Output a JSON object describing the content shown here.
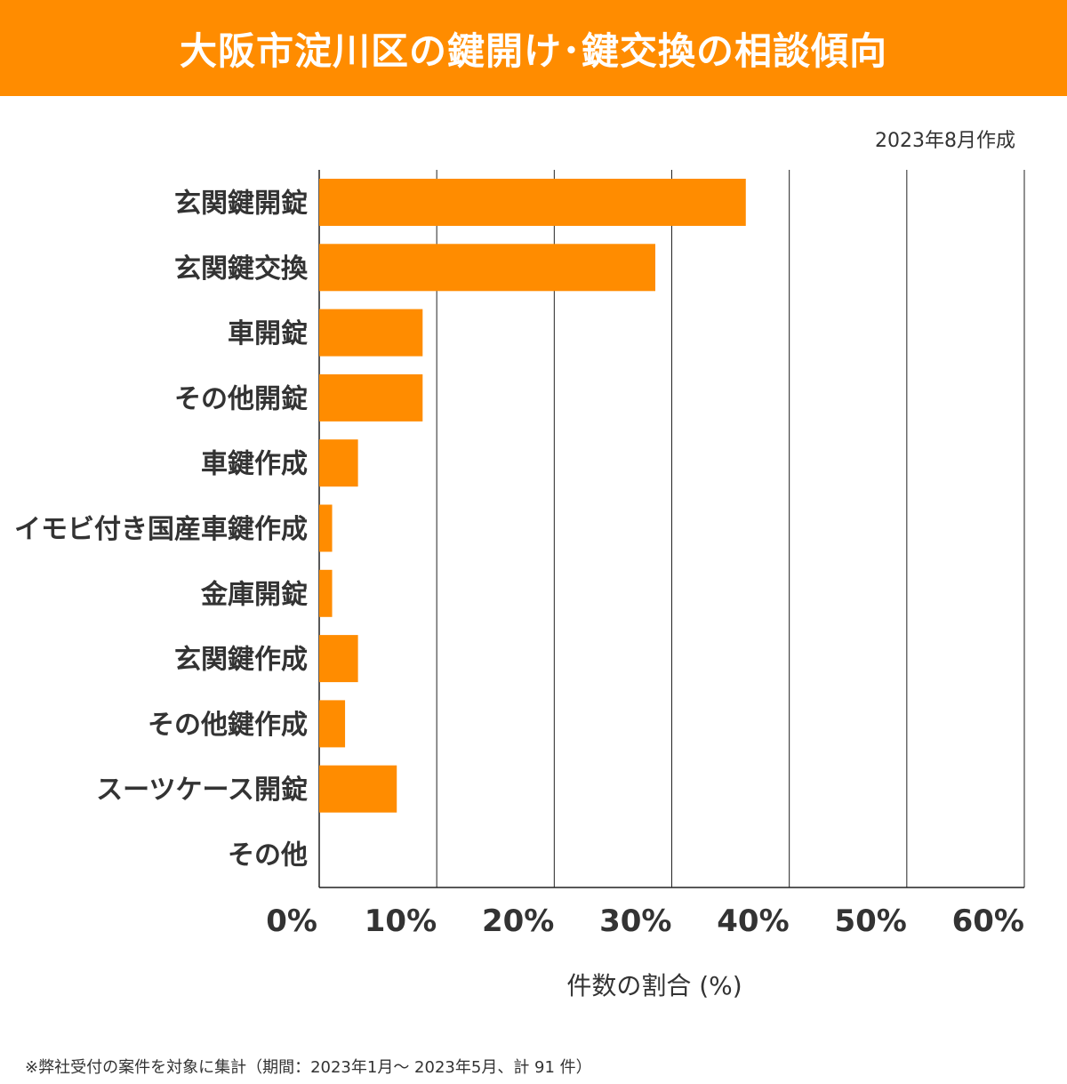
{
  "header": {
    "title": "大阪市淀川区の鍵開け･鍵交換の相談傾向"
  },
  "date_note": "2023年8月作成",
  "footnote": "※弊社受付の案件を対象に集計（期間：2023年1月～ 2023年5月、計 91 件）",
  "colors": {
    "bar": "#FF8C00",
    "header": "#FF8C00",
    "grid": "#222222"
  },
  "chart_data": {
    "type": "bar",
    "orientation": "horizontal",
    "title": "大阪市淀川区の鍵開け･鍵交換の相談傾向",
    "xlabel": "件数の割合 (%)",
    "ylabel": "",
    "xlim": [
      0,
      60
    ],
    "xticks": [
      0,
      10,
      20,
      30,
      40,
      50,
      60
    ],
    "xtick_labels": [
      "0%",
      "10%",
      "20%",
      "30%",
      "40%",
      "50%",
      "60%"
    ],
    "grid": true,
    "categories": [
      "玄関鍵開錠",
      "玄関鍵交換",
      "車開錠",
      "その他開錠",
      "車鍵作成",
      "イモビ付き国産車鍵作成",
      "金庫開錠",
      "玄関鍵作成",
      "その他鍵作成",
      "スーツケース開錠",
      "その他"
    ],
    "values": [
      36.3,
      28.6,
      8.8,
      8.8,
      3.3,
      1.1,
      1.1,
      3.3,
      2.2,
      6.6,
      0
    ]
  }
}
